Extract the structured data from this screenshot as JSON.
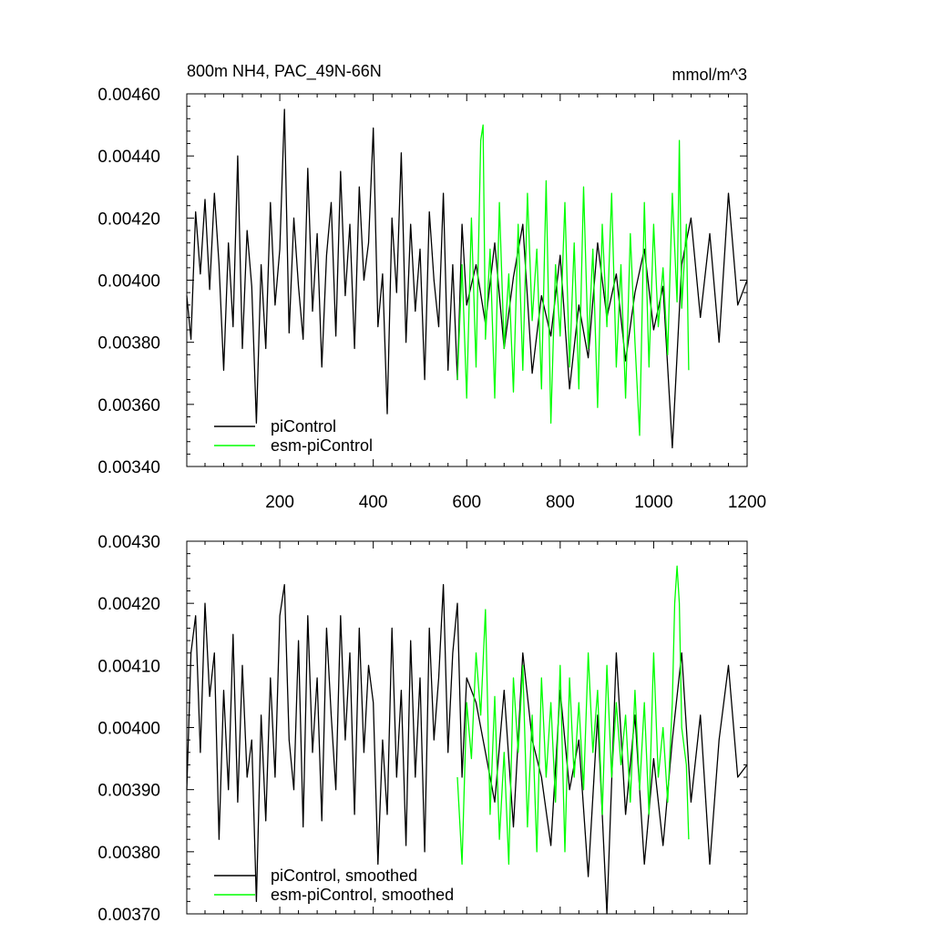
{
  "chart_data": [
    {
      "type": "line",
      "title": "800m NH4, PAC_49N-66N",
      "units": "mmol/m^3",
      "xlabel": "",
      "ylabel": "",
      "xlim": [
        1,
        1200
      ],
      "ylim": [
        0.0034,
        0.0046
      ],
      "x_ticks": [
        200,
        400,
        600,
        800,
        1000,
        1200
      ],
      "y_tick_labels": [
        "0.00340",
        "0.00360",
        "0.00380",
        "0.00400",
        "0.00420",
        "0.00440",
        "0.00460"
      ],
      "legend_position": "bottom-left",
      "grid": false,
      "series": [
        {
          "name": "piControl",
          "color": "#000000",
          "x": [
            1,
            10,
            20,
            30,
            40,
            50,
            60,
            70,
            80,
            90,
            100,
            110,
            120,
            130,
            140,
            150,
            160,
            170,
            180,
            190,
            200,
            210,
            220,
            230,
            240,
            250,
            260,
            270,
            280,
            290,
            300,
            310,
            320,
            330,
            340,
            350,
            360,
            370,
            380,
            390,
            400,
            410,
            420,
            430,
            440,
            450,
            460,
            470,
            480,
            490,
            500,
            510,
            520,
            530,
            540,
            550,
            560,
            570,
            580,
            590,
            600,
            620,
            640,
            660,
            680,
            700,
            720,
            740,
            760,
            780,
            800,
            820,
            840,
            860,
            880,
            900,
            920,
            940,
            960,
            980,
            1000,
            1020,
            1040,
            1060,
            1080,
            1100,
            1120,
            1140,
            1160,
            1180,
            1200
          ],
          "y": [
            0.00395,
            0.00381,
            0.00422,
            0.00402,
            0.00426,
            0.00397,
            0.00428,
            0.00405,
            0.00371,
            0.00412,
            0.00385,
            0.0044,
            0.00378,
            0.00416,
            0.00398,
            0.00354,
            0.00405,
            0.00378,
            0.00425,
            0.00392,
            0.0041,
            0.00455,
            0.00383,
            0.0042,
            0.00398,
            0.00381,
            0.00436,
            0.0039,
            0.00415,
            0.00372,
            0.00408,
            0.00425,
            0.00382,
            0.00435,
            0.00395,
            0.00418,
            0.00378,
            0.0043,
            0.004,
            0.00412,
            0.00449,
            0.00385,
            0.00402,
            0.00357,
            0.0042,
            0.00396,
            0.00441,
            0.0038,
            0.00418,
            0.0039,
            0.0041,
            0.00368,
            0.00422,
            0.004,
            0.00385,
            0.00428,
            0.00371,
            0.00405,
            0.00368,
            0.00418,
            0.00392,
            0.00405,
            0.00386,
            0.00412,
            0.00378,
            0.00401,
            0.00418,
            0.0037,
            0.00395,
            0.00382,
            0.00408,
            0.00365,
            0.00392,
            0.00375,
            0.00412,
            0.00388,
            0.00402,
            0.00374,
            0.00396,
            0.0041,
            0.00384,
            0.00398,
            0.00346,
            0.00405,
            0.0042,
            0.00388,
            0.00415,
            0.0038,
            0.00428,
            0.00392,
            0.004
          ]
        },
        {
          "name": "esm-piControl",
          "color": "#00ff00",
          "x": [
            580,
            590,
            600,
            610,
            620,
            630,
            635,
            640,
            650,
            660,
            670,
            680,
            690,
            700,
            710,
            720,
            730,
            740,
            750,
            760,
            770,
            780,
            790,
            800,
            810,
            820,
            830,
            840,
            850,
            860,
            870,
            880,
            890,
            900,
            910,
            920,
            930,
            940,
            950,
            960,
            970,
            980,
            990,
            1000,
            1010,
            1020,
            1030,
            1040,
            1050,
            1055,
            1060,
            1070,
            1075
          ],
          "y": [
            0.00368,
            0.00405,
            0.00362,
            0.0042,
            0.00372,
            0.00445,
            0.0045,
            0.00381,
            0.0041,
            0.00362,
            0.00425,
            0.00378,
            0.00402,
            0.00364,
            0.00418,
            0.00371,
            0.00428,
            0.00387,
            0.0041,
            0.00365,
            0.00432,
            0.00354,
            0.00405,
            0.00382,
            0.00425,
            0.00372,
            0.00412,
            0.00365,
            0.0043,
            0.00378,
            0.0041,
            0.00359,
            0.00418,
            0.00385,
            0.00428,
            0.00372,
            0.00405,
            0.00362,
            0.00415,
            0.0038,
            0.0035,
            0.00425,
            0.00372,
            0.00418,
            0.00385,
            0.00404,
            0.00376,
            0.00428,
            0.00393,
            0.00445,
            0.00391,
            0.00418,
            0.00371
          ]
        }
      ]
    },
    {
      "type": "line",
      "title": "",
      "xlabel": "",
      "ylabel": "",
      "xlim": [
        1,
        1200
      ],
      "ylim": [
        0.0037,
        0.0043
      ],
      "y_tick_labels": [
        "0.00370",
        "0.00380",
        "0.00390",
        "0.00400",
        "0.00410",
        "0.00420",
        "0.00430"
      ],
      "legend_position": "bottom-left",
      "grid": false,
      "series": [
        {
          "name": "piControl, smoothed",
          "color": "#000000",
          "x": [
            1,
            10,
            20,
            30,
            40,
            50,
            60,
            70,
            80,
            90,
            100,
            110,
            120,
            130,
            140,
            150,
            160,
            170,
            180,
            190,
            200,
            210,
            220,
            230,
            240,
            250,
            260,
            270,
            280,
            290,
            300,
            310,
            320,
            330,
            340,
            350,
            360,
            370,
            380,
            390,
            400,
            410,
            420,
            430,
            440,
            450,
            460,
            470,
            480,
            490,
            500,
            510,
            520,
            530,
            540,
            550,
            560,
            570,
            580,
            590,
            600,
            620,
            640,
            660,
            680,
            700,
            720,
            740,
            760,
            780,
            800,
            820,
            840,
            860,
            880,
            900,
            920,
            940,
            960,
            980,
            1000,
            1020,
            1040,
            1060,
            1080,
            1100,
            1120,
            1140,
            1160,
            1180,
            1200
          ],
          "y": [
            0.0039,
            0.00412,
            0.00418,
            0.00396,
            0.0042,
            0.00405,
            0.00412,
            0.00382,
            0.00406,
            0.0039,
            0.00415,
            0.00388,
            0.0041,
            0.00392,
            0.00398,
            0.00372,
            0.00402,
            0.00385,
            0.00408,
            0.00392,
            0.00418,
            0.00423,
            0.00398,
            0.0039,
            0.00414,
            0.00384,
            0.00418,
            0.00396,
            0.00408,
            0.00385,
            0.00416,
            0.00402,
            0.0039,
            0.00418,
            0.00398,
            0.00412,
            0.00386,
            0.00416,
            0.00396,
            0.0041,
            0.00404,
            0.00378,
            0.00398,
            0.00386,
            0.00416,
            0.00392,
            0.00406,
            0.00381,
            0.00414,
            0.00392,
            0.00408,
            0.0038,
            0.00416,
            0.00398,
            0.00408,
            0.00423,
            0.00396,
            0.00412,
            0.0042,
            0.00392,
            0.00408,
            0.00404,
            0.00396,
            0.00388,
            0.00406,
            0.00384,
            0.00412,
            0.00398,
            0.00392,
            0.00381,
            0.00406,
            0.0039,
            0.00398,
            0.00376,
            0.00402,
            0.0037,
            0.00412,
            0.00386,
            0.00402,
            0.00378,
            0.00395,
            0.00381,
            0.00398,
            0.00412,
            0.00388,
            0.00402,
            0.00378,
            0.00398,
            0.0041,
            0.00392,
            0.00394
          ]
        },
        {
          "name": "esm-piControl, smoothed",
          "color": "#00ff00",
          "x": [
            580,
            590,
            600,
            610,
            620,
            630,
            640,
            650,
            660,
            670,
            680,
            690,
            700,
            710,
            720,
            730,
            740,
            750,
            760,
            770,
            780,
            790,
            800,
            810,
            820,
            830,
            840,
            850,
            860,
            870,
            880,
            890,
            900,
            910,
            920,
            930,
            940,
            950,
            960,
            970,
            980,
            990,
            1000,
            1010,
            1020,
            1030,
            1040,
            1045,
            1050,
            1055,
            1060,
            1070,
            1075
          ],
          "y": [
            0.00392,
            0.00378,
            0.00404,
            0.00395,
            0.00412,
            0.00402,
            0.00419,
            0.00386,
            0.00405,
            0.00382,
            0.00396,
            0.00378,
            0.00408,
            0.00396,
            0.0041,
            0.00384,
            0.00402,
            0.0038,
            0.00408,
            0.00392,
            0.00404,
            0.00388,
            0.0041,
            0.0038,
            0.00408,
            0.00392,
            0.00404,
            0.0039,
            0.00412,
            0.00396,
            0.00406,
            0.00386,
            0.0041,
            0.00392,
            0.00404,
            0.00394,
            0.00402,
            0.00388,
            0.00406,
            0.0039,
            0.00404,
            0.00386,
            0.00412,
            0.00392,
            0.004,
            0.00388,
            0.00404,
            0.0042,
            0.00426,
            0.0042,
            0.004,
            0.00394,
            0.00382
          ]
        }
      ]
    }
  ]
}
